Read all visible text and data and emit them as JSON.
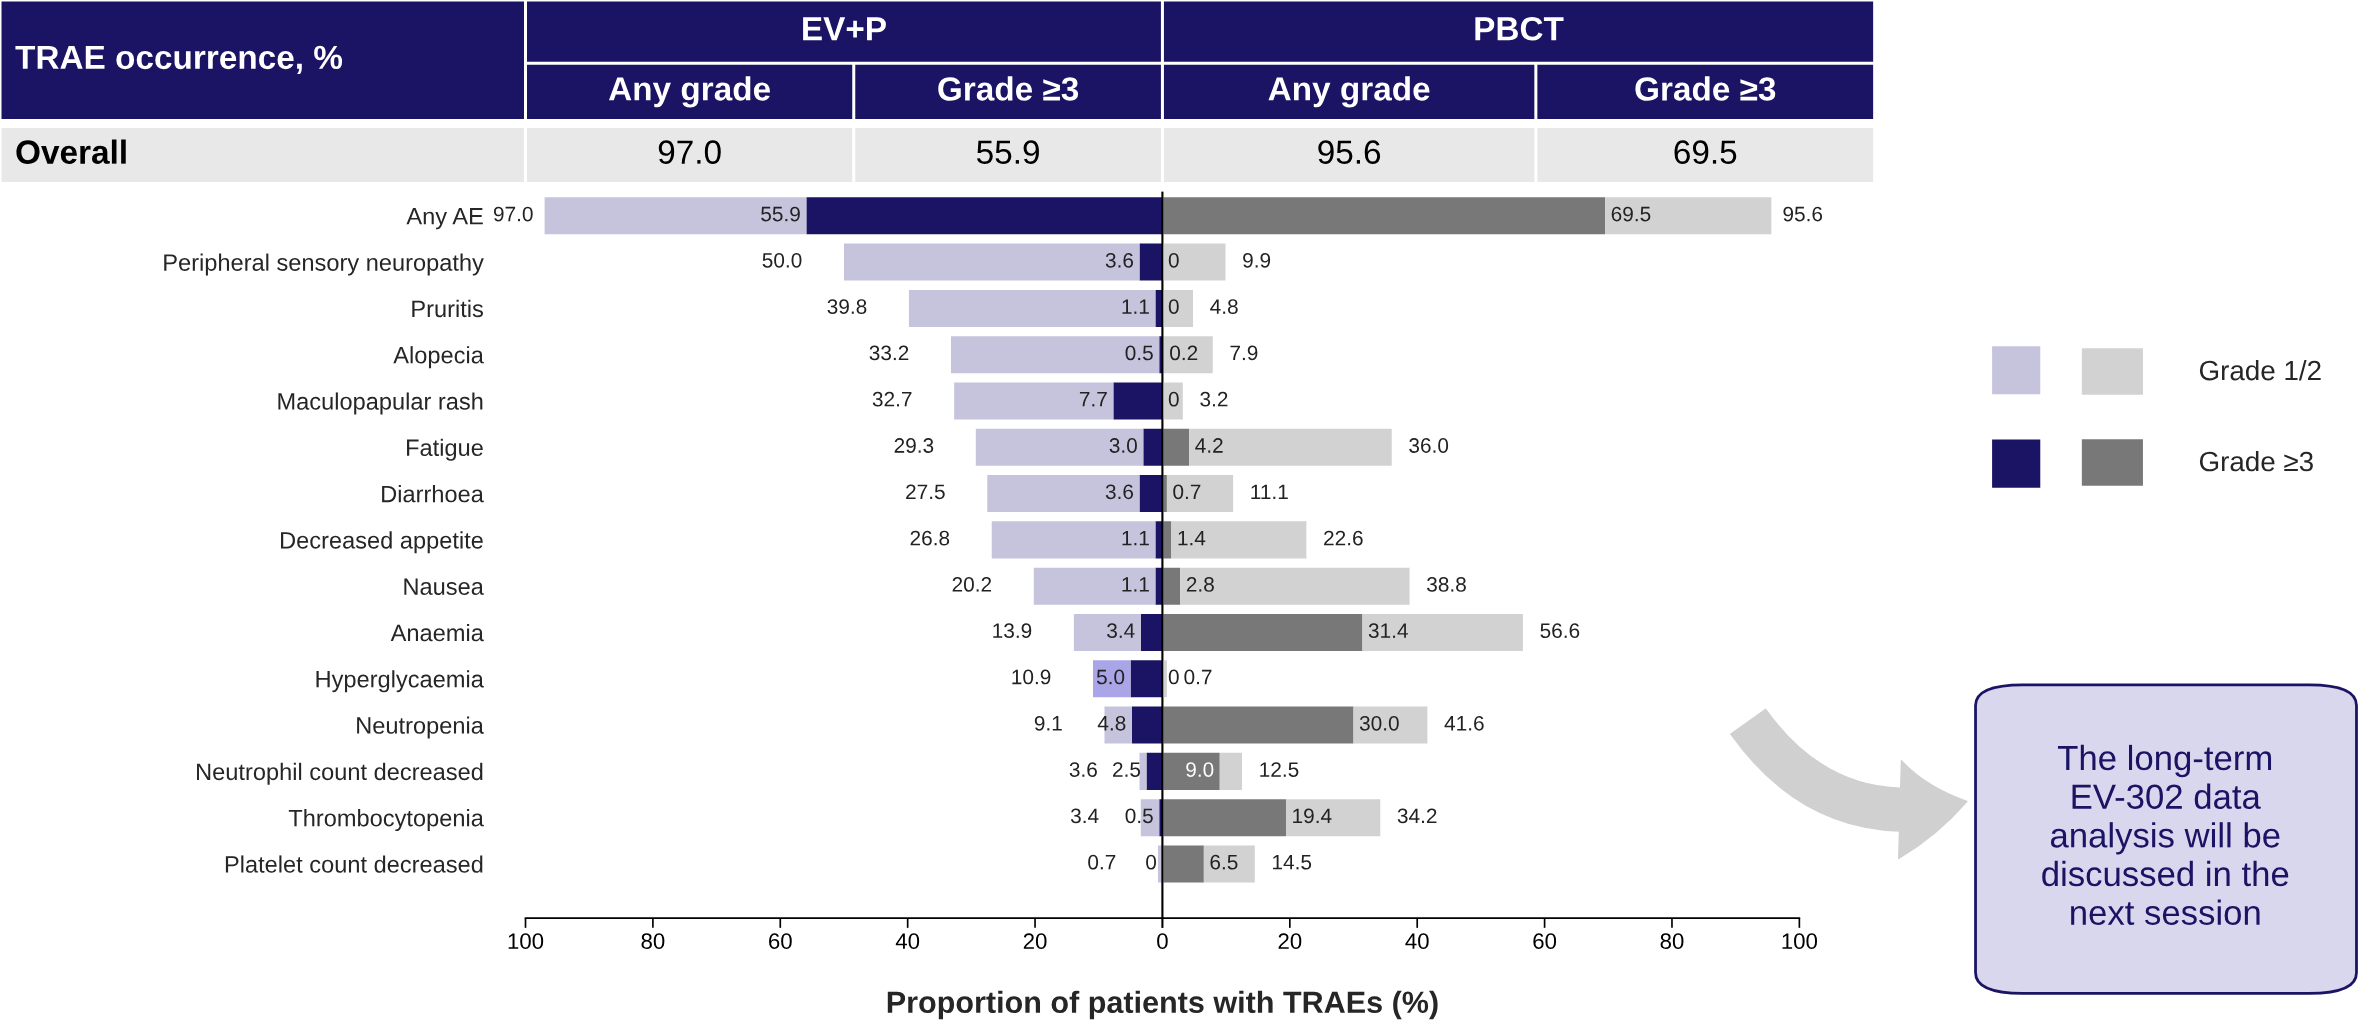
{
  "chart_data": [
    {
      "type": "bar",
      "orientation": "horizontal",
      "stacked": true,
      "xlabel": "Proportion of patients with TRAEs (%)",
      "categories": [
        "Any AE",
        "Peripheral sensory neuropathy",
        "Pruritis",
        "Alopecia",
        "Maculopapular rash",
        "Fatigue",
        "Diarrhoea",
        "Decreased appetite",
        "Nausea",
        "Anaemia",
        "Hyperglycaemia",
        "Neutropenia",
        "Neutrophil count decreased",
        "Thrombocytopenia",
        "Platelet count decreased"
      ],
      "xlim": [
        100,
        0
      ],
      "xticks": [
        100,
        80,
        60,
        40,
        20,
        0
      ],
      "series": [
        {
          "color": "#1b1464",
          "values": [
            55.9,
            3.6,
            1.1,
            0.5,
            7.7,
            3.0,
            3.6,
            1.1,
            1.1,
            3.4,
            5.0,
            4.8,
            2.5,
            0.5,
            0
          ],
          "value_labels": [
            "55.9",
            "3.6",
            "1.1",
            "0.5",
            "7.7",
            "3.0",
            "3.6",
            "1.1",
            "1.1",
            "3.4",
            "5.0",
            "4.8",
            "2.5",
            "0.5",
            "0"
          ]
        },
        {
          "color": "#c6c4dc",
          "colors": [
            "#c6c4dc",
            "#c6c4dc",
            "#c6c4dc",
            "#c6c4dc",
            "#c6c4dc",
            "#c6c4dc",
            "#c6c4dc",
            "#c6c4dc",
            "#c6c4dc",
            "#c6c4dc",
            "#aaa5e6",
            "#c6c4dc",
            "#c6c4dc",
            "#c6c4dc",
            "#c6c4dc"
          ],
          "values": [
            41.1,
            46.4,
            38.7,
            32.7,
            25.0,
            26.3,
            23.9,
            25.7,
            19.1,
            10.5,
            5.9,
            4.3,
            1.1,
            2.9,
            0.7
          ]
        }
      ],
      "totals": [
        "97.0",
        "50.0",
        "39.8",
        "33.2",
        "32.7",
        "29.3",
        "27.5",
        "26.8",
        "20.2",
        "13.9",
        "10.9",
        "9.1",
        "3.6",
        "3.4",
        "0.7"
      ]
    },
    {
      "type": "bar",
      "orientation": "horizontal",
      "stacked": true,
      "tick_labels": "x",
      "legend": "right",
      "categories": [
        null,
        null,
        null,
        null,
        null,
        null,
        null,
        null,
        null,
        null,
        null,
        null,
        null,
        null,
        null
      ],
      "xlim": [
        0,
        100
      ],
      "xticks": [
        {
          "value": 0,
          "label": null
        },
        20,
        40,
        60,
        80,
        100
      ],
      "series": [
        {
          "name": "Grade ≥3",
          "color": "#787878",
          "values": [
            69.5,
            0,
            0,
            0.2,
            0,
            4.2,
            0.7,
            1.4,
            2.8,
            31.4,
            0,
            30.0,
            9.0,
            19.4,
            6.5
          ],
          "value_labels": [
            "69.5",
            "0",
            "0",
            "0.2",
            "0",
            "4.2",
            "0.7",
            "1.4",
            "2.8",
            "31.4",
            "0",
            "30.0",
            "9.0",
            "19.4",
            "6.5"
          ]
        },
        {
          "name": "Grade 1/2",
          "color": "#d2d2d2",
          "values": [
            26.1,
            9.9,
            4.8,
            7.7,
            3.2,
            31.8,
            10.4,
            21.2,
            36.0,
            25.2,
            0.7,
            11.6,
            3.5,
            14.8,
            8.0
          ]
        }
      ],
      "totals": [
        "95.6",
        "9.9",
        "4.8",
        "7.9",
        "3.2",
        "36.0",
        "11.1",
        "22.6",
        "38.8",
        "56.6",
        "0.7",
        "41.6",
        "12.5",
        "34.2",
        "14.5"
      ]
    },
    {
      "type": "other",
      "annotations": [
        "TRAE occurrence, %",
        "EV+P",
        "PBCT",
        "Any grade",
        "Grade ≥3",
        "Any grade",
        "Grade ≥3",
        "Overall",
        "97.0",
        "55.9",
        "95.6",
        "69.5"
      ]
    },
    {
      "type": "other",
      "annotations": [
        "The long-term\nEV-302 data\nanalysis will be\ndiscussed in the\nnext session"
      ]
    }
  ]
}
